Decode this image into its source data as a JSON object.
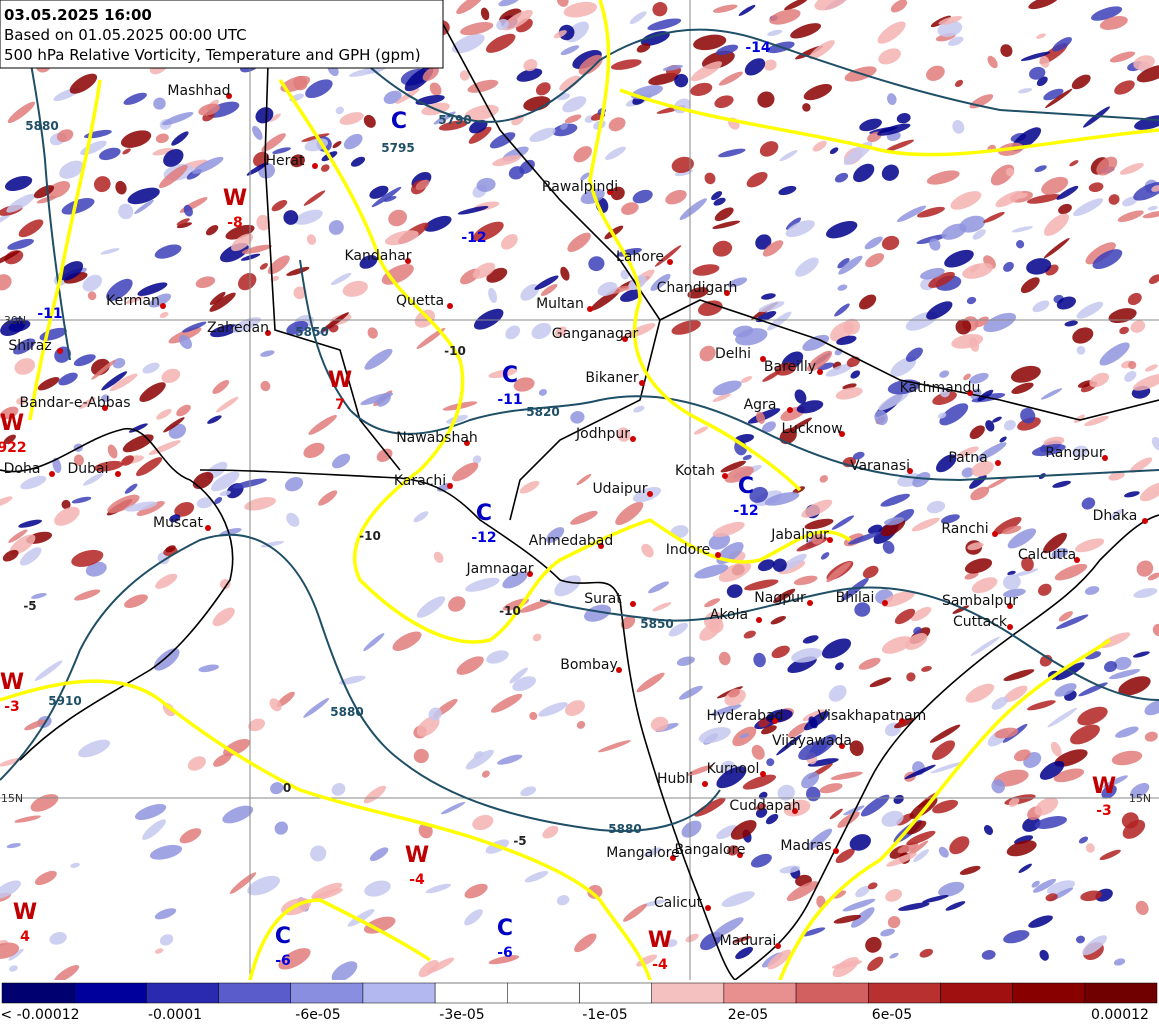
{
  "header": {
    "date": "03.05.2025 16:00",
    "based_on": "Based on 01.05.2025 00:00 UTC",
    "description": "500 hPa Relative Vorticity, Temperature and GPH (gpm)"
  },
  "cities": [
    "Mashhad",
    "Herat",
    "Kandahar",
    "Quetta",
    "Kerman",
    "Zahedan",
    "Shiraz",
    "Bandar-e-Abbas",
    "Doha",
    "Dubai",
    "Muscat",
    "Karachi",
    "Nawabshah",
    "Multan",
    "Lahore",
    "Rawalpindi",
    "Chandigarh",
    "Ganganagar",
    "Bikaner",
    "Delhi",
    "Bareilly",
    "Agra",
    "Jodhpur",
    "Lucknow",
    "Kotah",
    "Udaipur",
    "Varanasi",
    "Patna",
    "Kathmandu",
    "Rangpur",
    "Ahmedabad",
    "Indore",
    "Jabalpur",
    "Ranchi",
    "Calcutta",
    "Dhaka",
    "Jamnagar",
    "Surat",
    "Akola",
    "Nagpur",
    "Bhilai",
    "Sambalpur",
    "Cuttack",
    "Bombay",
    "Hyderabad",
    "Visakhapatnam",
    "Vijayawada",
    "Hubli",
    "Kurnool",
    "Cuddapah",
    "Madras",
    "Mangalore",
    "Bangalore",
    "Calicut",
    "Madurai"
  ],
  "centers": [
    {
      "letter": "C",
      "value": null
    },
    {
      "letter": "W",
      "value": "-8"
    },
    {
      "letter": "W",
      "value": "7"
    },
    {
      "letter": "C",
      "value": "-11"
    },
    {
      "letter": "C",
      "value": "-12"
    },
    {
      "letter": "C",
      "value": "-12"
    },
    {
      "letter": "W",
      "value": "-4"
    },
    {
      "letter": "C",
      "value": "-6"
    },
    {
      "letter": "C",
      "value": "-6"
    },
    {
      "letter": "W",
      "value": "-3"
    },
    {
      "letter": "W",
      "value": "-4"
    },
    {
      "letter": "W",
      "value": "4"
    },
    {
      "letter": "W",
      "value": "-3"
    },
    {
      "letter": "W",
      "value": "922"
    }
  ],
  "extra_values": [
    "-14",
    "-12",
    "-11"
  ],
  "contour_labels": [
    "5880",
    "5790",
    "5795",
    "5850",
    "5880",
    "5880",
    "5910",
    "5820",
    "5850",
    "-10",
    "-10",
    "-10",
    "-5",
    "0",
    "-5"
  ],
  "lat_labels": [
    "30N",
    "15N",
    "15N"
  ],
  "colorbar": {
    "labels": [
      "< -0.00012",
      "-0.0001",
      "-6e-05",
      "-3e-05",
      "-1e-05",
      "2e-05",
      "6e-05",
      "0.00012"
    ]
  }
}
